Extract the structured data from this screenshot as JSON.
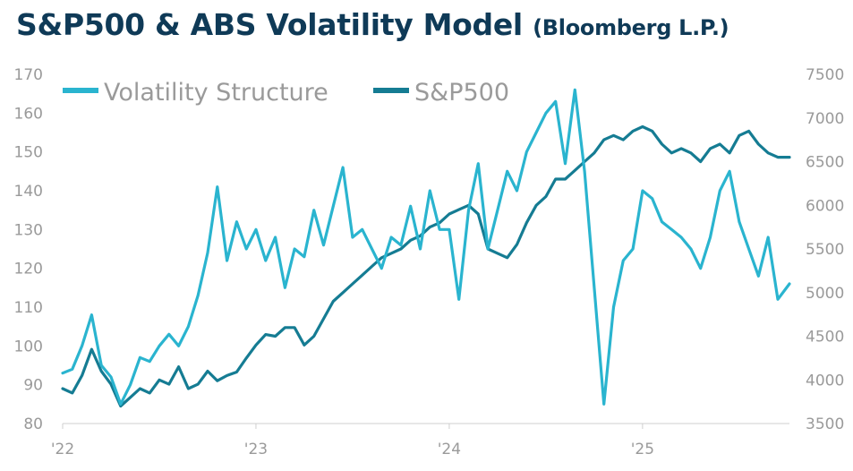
{
  "title": "S&P500 & ABS Volatility Model",
  "source": "(Bloomberg L.P.)",
  "colors": {
    "volatility": "#2ab4cf",
    "sp500": "#157c93",
    "title": "#0f3a57",
    "axis_text": "#9a9a9a",
    "axis_line": "#cfcfcf"
  },
  "chart_data": {
    "type": "line",
    "title": "S&P500 & ABS Volatility Model (Bloomberg L.P.)",
    "x_tick_labels": [
      "'22",
      "'23",
      "'24",
      "'25"
    ],
    "x_tick_positions": [
      2022.0,
      2023.0,
      2024.0,
      2025.0
    ],
    "xlim": [
      2022.0,
      2025.76
    ],
    "y_left": {
      "ylim": [
        80,
        170
      ],
      "ticks": [
        80,
        90,
        100,
        110,
        120,
        130,
        140,
        150,
        160,
        170
      ]
    },
    "y_right": {
      "ylim": [
        3500,
        7500
      ],
      "ticks": [
        3500,
        4000,
        4500,
        5000,
        5500,
        6000,
        6500,
        7000,
        7500
      ]
    },
    "legend": [
      "Volatility Structure",
      "S&P500"
    ],
    "series": [
      {
        "name": "Volatility Structure",
        "axis": "left",
        "x": [
          2022.0,
          2022.05,
          2022.1,
          2022.15,
          2022.2,
          2022.25,
          2022.3,
          2022.35,
          2022.4,
          2022.45,
          2022.5,
          2022.55,
          2022.6,
          2022.65,
          2022.7,
          2022.75,
          2022.8,
          2022.85,
          2022.9,
          2022.95,
          2023.0,
          2023.05,
          2023.1,
          2023.15,
          2023.2,
          2023.25,
          2023.3,
          2023.35,
          2023.4,
          2023.45,
          2023.5,
          2023.55,
          2023.6,
          2023.65,
          2023.7,
          2023.75,
          2023.8,
          2023.85,
          2023.9,
          2023.95,
          2024.0,
          2024.05,
          2024.1,
          2024.15,
          2024.2,
          2024.25,
          2024.3,
          2024.35,
          2024.4,
          2024.45,
          2024.5,
          2024.55,
          2024.6,
          2024.65,
          2024.7,
          2024.75,
          2024.8,
          2024.85,
          2024.9,
          2024.95,
          2025.0,
          2025.05,
          2025.1,
          2025.15,
          2025.2,
          2025.25,
          2025.3,
          2025.35,
          2025.4,
          2025.45,
          2025.5,
          2025.55,
          2025.6,
          2025.65,
          2025.7,
          2025.76
        ],
        "values": [
          93,
          94,
          100,
          108,
          95,
          92,
          85,
          90,
          97,
          96,
          100,
          103,
          100,
          105,
          113,
          124,
          141,
          122,
          132,
          125,
          130,
          122,
          128,
          115,
          125,
          123,
          135,
          126,
          136,
          146,
          128,
          130,
          125,
          120,
          128,
          126,
          136,
          125,
          140,
          130,
          130,
          112,
          135,
          147,
          125,
          135,
          145,
          140,
          150,
          155,
          160,
          163,
          147,
          166,
          145,
          115,
          85,
          110,
          122,
          125,
          140,
          138,
          132,
          130,
          128,
          125,
          120,
          128,
          140,
          145,
          132,
          125,
          118,
          128,
          112,
          116
        ]
      },
      {
        "name": "S&P500",
        "axis": "right",
        "x": [
          2022.0,
          2022.05,
          2022.1,
          2022.15,
          2022.2,
          2022.25,
          2022.3,
          2022.35,
          2022.4,
          2022.45,
          2022.5,
          2022.55,
          2022.6,
          2022.65,
          2022.7,
          2022.75,
          2022.8,
          2022.85,
          2022.9,
          2022.95,
          2023.0,
          2023.05,
          2023.1,
          2023.15,
          2023.2,
          2023.25,
          2023.3,
          2023.35,
          2023.4,
          2023.45,
          2023.5,
          2023.55,
          2023.6,
          2023.65,
          2023.7,
          2023.75,
          2023.8,
          2023.85,
          2023.9,
          2023.95,
          2024.0,
          2024.05,
          2024.1,
          2024.15,
          2024.2,
          2024.25,
          2024.3,
          2024.35,
          2024.4,
          2024.45,
          2024.5,
          2024.55,
          2024.6,
          2024.65,
          2024.7,
          2024.75,
          2024.8,
          2024.85,
          2024.9,
          2024.95,
          2025.0,
          2025.05,
          2025.1,
          2025.15,
          2025.2,
          2025.25,
          2025.3,
          2025.35,
          2025.4,
          2025.45,
          2025.5,
          2025.55,
          2025.6,
          2025.65,
          2025.7,
          2025.76
        ],
        "values": [
          3900,
          3850,
          4050,
          4350,
          4100,
          3950,
          3700,
          3800,
          3900,
          3850,
          4000,
          3950,
          4150,
          3900,
          3950,
          4100,
          3990,
          4050,
          4090,
          4250,
          4400,
          4520,
          4500,
          4600,
          4600,
          4400,
          4500,
          4700,
          4900,
          5000,
          5100,
          5200,
          5300,
          5400,
          5450,
          5500,
          5600,
          5650,
          5750,
          5800,
          5900,
          5950,
          6000,
          5900,
          5500,
          5450,
          5400,
          5550,
          5800,
          6000,
          6100,
          6300,
          6300,
          6400,
          6500,
          6600,
          6750,
          6800,
          6750,
          6850,
          6900,
          6850,
          6700,
          6600,
          6650,
          6600,
          6500,
          6650,
          6700,
          6600,
          6800,
          6850,
          6700,
          6600,
          6550,
          6550
        ]
      }
    ]
  }
}
